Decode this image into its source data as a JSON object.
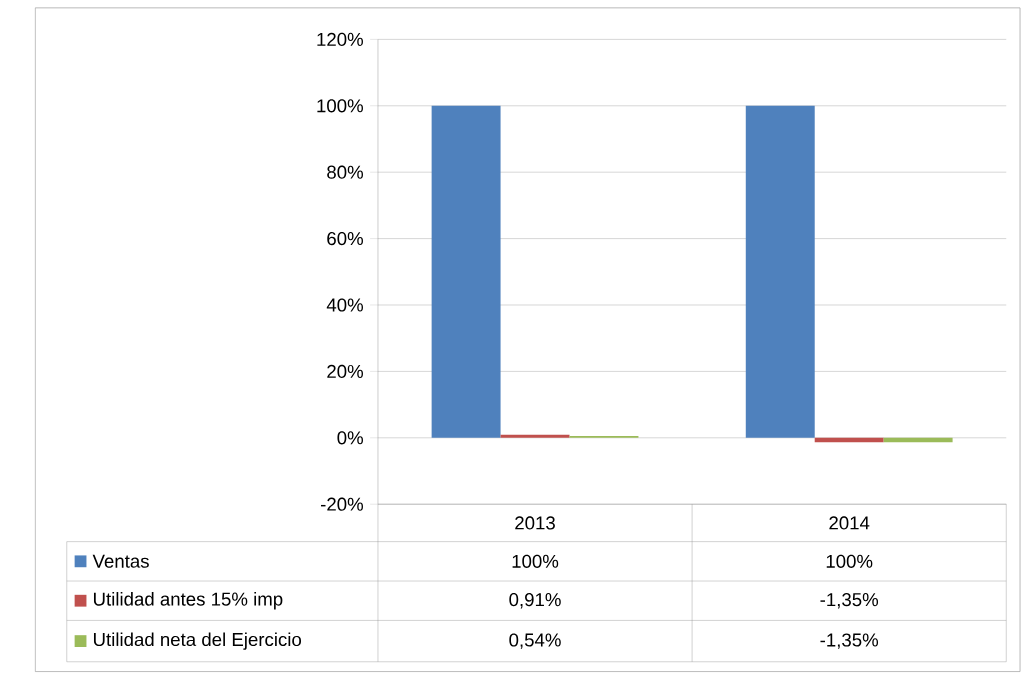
{
  "chart_data": {
    "type": "bar",
    "categories": [
      "2013",
      "2014"
    ],
    "series": [
      {
        "name": "Ventas",
        "color": "#4f81bd",
        "values": [
          100,
          100
        ],
        "value_labels": [
          "100%",
          "100%"
        ]
      },
      {
        "name": "Utilidad antes 15% imp",
        "color": "#c0504d",
        "values": [
          0.91,
          -1.35
        ],
        "value_labels": [
          "0,91%",
          "-1,35%"
        ]
      },
      {
        "name": "Utilidad neta del Ejercicio",
        "color": "#9bbb59",
        "values": [
          0.54,
          -1.35
        ],
        "value_labels": [
          "0,54%",
          "-1,35%"
        ]
      }
    ],
    "ylim": [
      -20,
      120
    ],
    "yticks": [
      {
        "value": -20,
        "label": "-20%"
      },
      {
        "value": 0,
        "label": "0%"
      },
      {
        "value": 20,
        "label": "20%"
      },
      {
        "value": 40,
        "label": "40%"
      },
      {
        "value": 60,
        "label": "60%"
      },
      {
        "value": 80,
        "label": "80%"
      },
      {
        "value": 100,
        "label": "100%"
      },
      {
        "value": 120,
        "label": "120%"
      }
    ],
    "grid": "y",
    "legend": "bottom"
  }
}
